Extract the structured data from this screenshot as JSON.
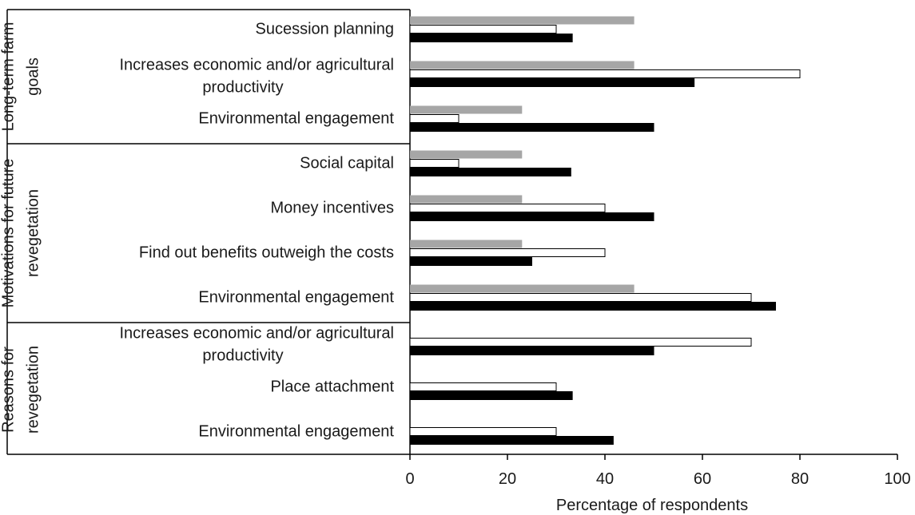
{
  "chart_data": {
    "type": "bar",
    "orientation": "horizontal",
    "xlabel": "Percentage of respondents",
    "xlim": [
      0,
      100
    ],
    "xticks": [
      0,
      20,
      40,
      60,
      80,
      100
    ],
    "grid": false,
    "legend": "none",
    "series": [
      {
        "color": "#a6a6a6",
        "fill": "gray"
      },
      {
        "color": "#ffffff",
        "fill": "white"
      },
      {
        "color": "#000000",
        "fill": "black"
      }
    ],
    "groups": [
      {
        "label_lines": [
          "Long-term farm",
          "goals"
        ],
        "categories": [
          {
            "label_lines": [
              "Sucession planning"
            ],
            "values": [
              46,
              30,
              33.3
            ]
          },
          {
            "label_lines": [
              "Increases economic and/or agricultural",
              "productivity"
            ],
            "values": [
              46,
              80,
              58.3
            ]
          },
          {
            "label_lines": [
              "Environmental engagement"
            ],
            "values": [
              23,
              10,
              50
            ]
          }
        ]
      },
      {
        "label_lines": [
          "Motivations for future",
          "revegetation"
        ],
        "categories": [
          {
            "label_lines": [
              "Social capital"
            ],
            "values": [
              23,
              10,
              33
            ]
          },
          {
            "label_lines": [
              "Money incentives"
            ],
            "values": [
              23,
              40,
              50
            ]
          },
          {
            "label_lines": [
              "Find out benefits outweigh the costs"
            ],
            "values": [
              23,
              40,
              25
            ]
          },
          {
            "label_lines": [
              "Environmental engagement"
            ],
            "values": [
              46,
              70,
              75
            ]
          }
        ]
      },
      {
        "label_lines": [
          "Reasons for",
          "revegetation"
        ],
        "categories": [
          {
            "label_lines": [
              "Increases economic and/or agricultural",
              "productivity"
            ],
            "values": [
              null,
              70,
              50
            ]
          },
          {
            "label_lines": [
              "Place attachment"
            ],
            "values": [
              null,
              30,
              33.3
            ]
          },
          {
            "label_lines": [
              "Environmental engagement"
            ],
            "values": [
              null,
              30,
              41.7
            ]
          }
        ]
      }
    ]
  }
}
